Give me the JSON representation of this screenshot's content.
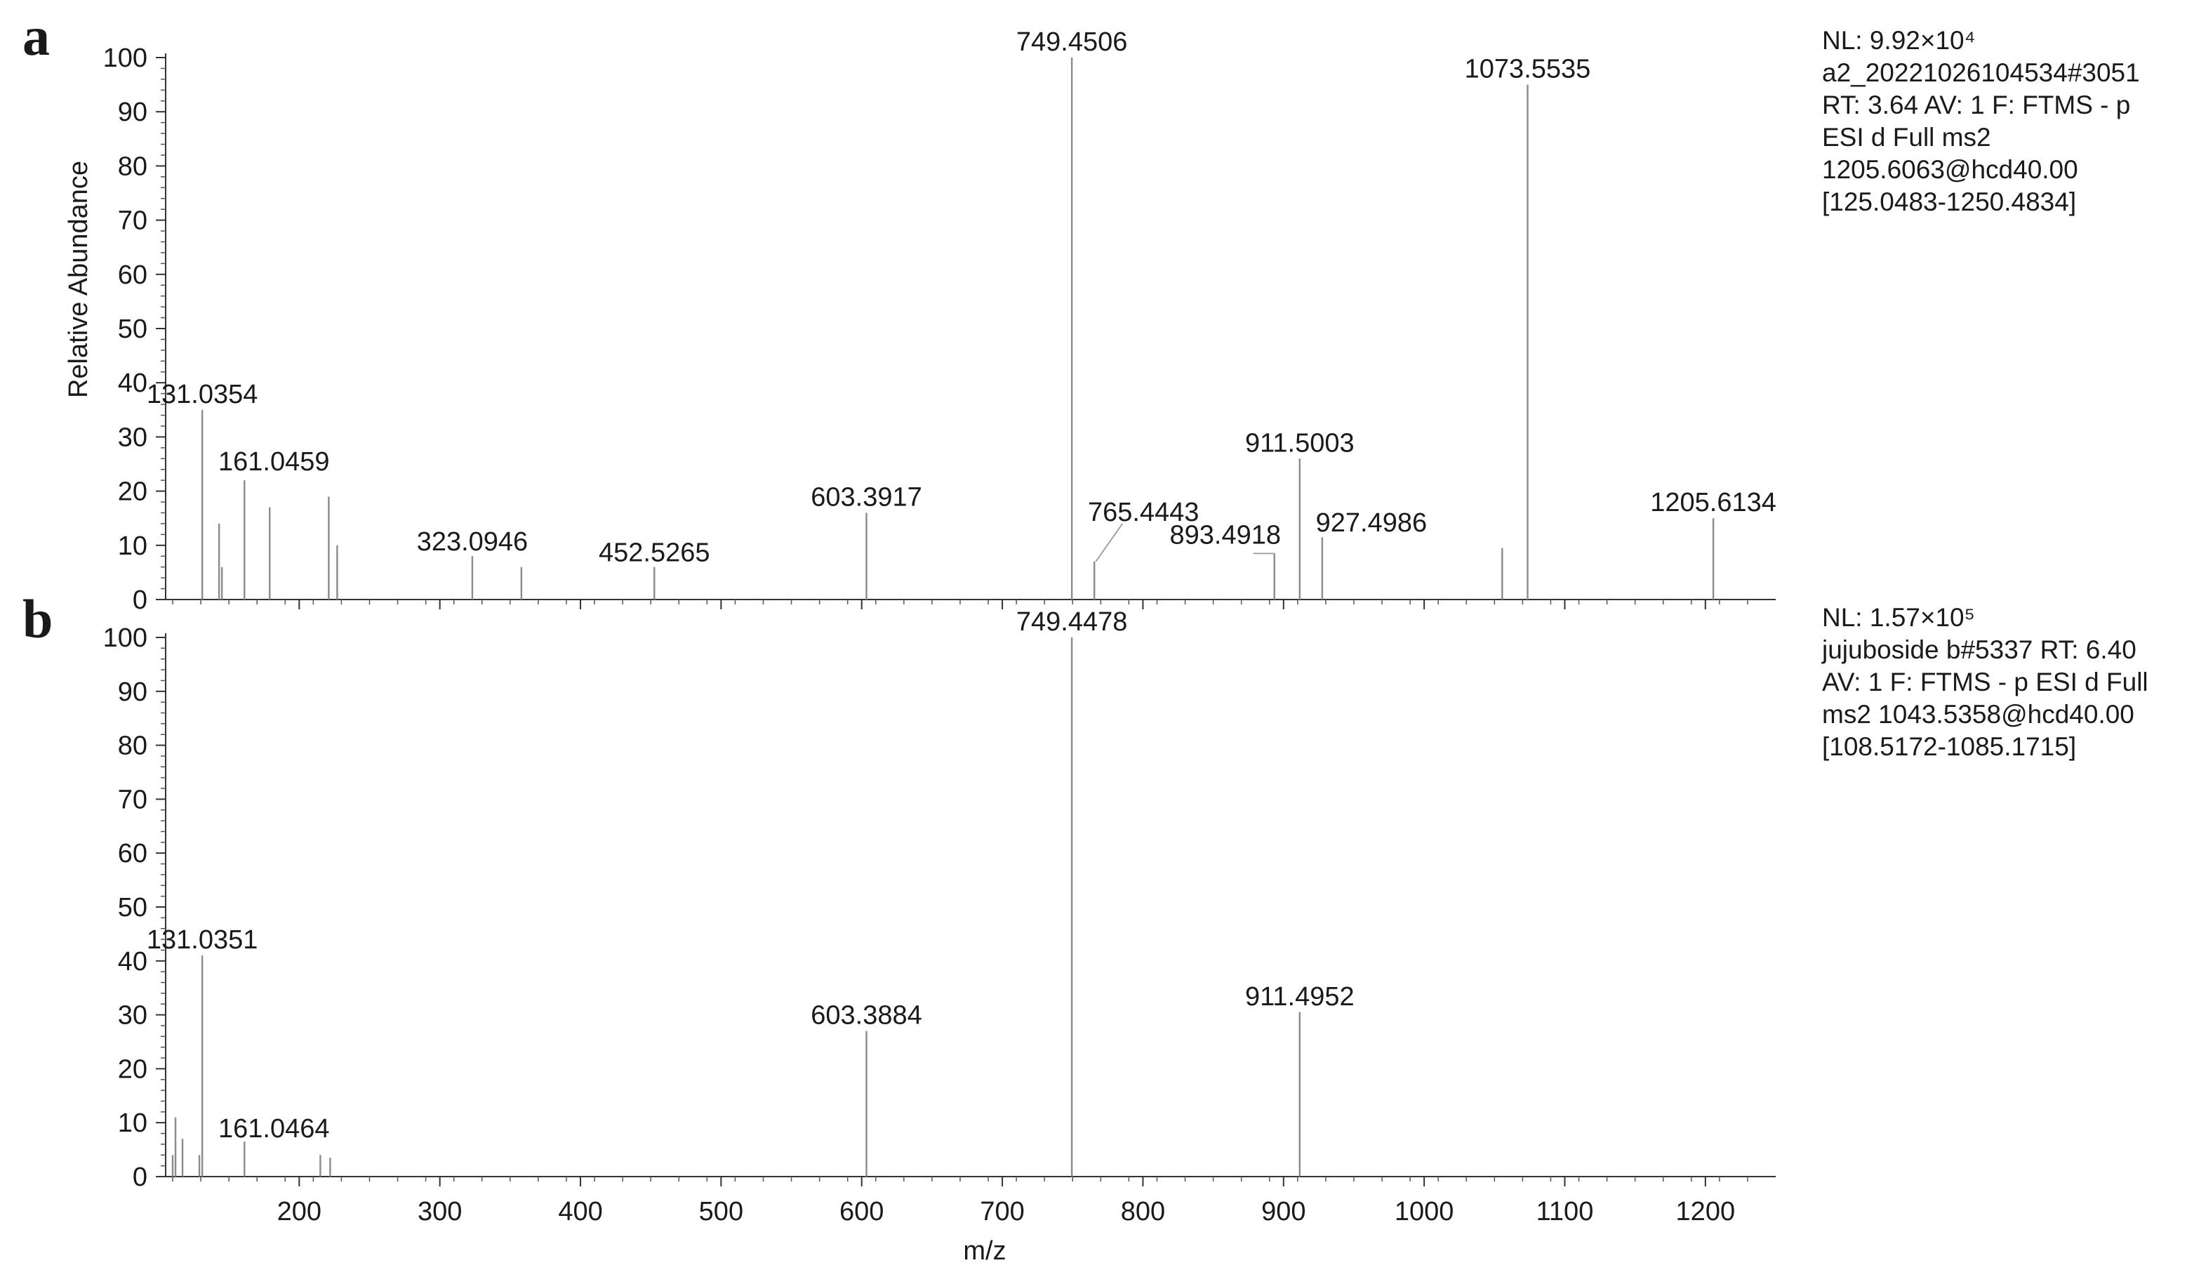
{
  "chart_data": [
    {
      "type": "bar",
      "panel_label": "a",
      "ylabel": "Relative Abundance",
      "xlabel": "",
      "ylim": [
        0,
        100
      ],
      "xlim": [
        105,
        1250
      ],
      "y_ticks": [
        "0",
        "10",
        "20",
        "30",
        "40",
        "50",
        "60",
        "70",
        "80",
        "90",
        "100"
      ],
      "info": [
        "NL: 9.92×10⁴",
        "a2_20221026104534#3051",
        "RT: 3.64  AV: 1 F: FTMS - p",
        "ESI d Full ms2",
        "1205.6063@hcd40.00",
        "[125.0483-1250.4834]"
      ],
      "peaks": [
        {
          "mz": 131.0354,
          "intensity": 35,
          "label": "131.0354"
        },
        {
          "mz": 143.0,
          "intensity": 14
        },
        {
          "mz": 145.0,
          "intensity": 6
        },
        {
          "mz": 161.0459,
          "intensity": 22,
          "label": "161.0459"
        },
        {
          "mz": 179.0,
          "intensity": 17
        },
        {
          "mz": 221.0,
          "intensity": 19
        },
        {
          "mz": 227.0,
          "intensity": 10
        },
        {
          "mz": 323.0946,
          "intensity": 8,
          "label": "323.0946"
        },
        {
          "mz": 358.0,
          "intensity": 6
        },
        {
          "mz": 452.5265,
          "intensity": 6,
          "label": "452.5265"
        },
        {
          "mz": 603.3917,
          "intensity": 16,
          "label": "603.3917"
        },
        {
          "mz": 749.4506,
          "intensity": 100,
          "label": "749.4506"
        },
        {
          "mz": 765.4443,
          "intensity": 7,
          "label": "765.4443"
        },
        {
          "mz": 893.4918,
          "intensity": 8.5,
          "label": "893.4918"
        },
        {
          "mz": 911.5003,
          "intensity": 26,
          "label": "911.5003"
        },
        {
          "mz": 927.4986,
          "intensity": 11.5,
          "label": "927.4986"
        },
        {
          "mz": 1055.5,
          "intensity": 9.5
        },
        {
          "mz": 1073.5535,
          "intensity": 95,
          "label": "1073.5535"
        },
        {
          "mz": 1205.6134,
          "intensity": 15,
          "label": "1205.6134"
        }
      ]
    },
    {
      "type": "bar",
      "panel_label": "b",
      "ylabel": "",
      "xlabel": "m/z",
      "ylim": [
        0,
        100
      ],
      "xlim": [
        105,
        1250
      ],
      "y_ticks": [
        "0",
        "10",
        "20",
        "30",
        "40",
        "50",
        "60",
        "70",
        "80",
        "90",
        "100"
      ],
      "x_ticks": [
        "200",
        "300",
        "400",
        "500",
        "600",
        "700",
        "800",
        "900",
        "1000",
        "1100",
        "1200"
      ],
      "info": [
        "NL: 1.57×10⁵",
        "jujuboside b#5337  RT: 6.40",
        "AV: 1 F: FTMS - p ESI d Full",
        "ms2 1043.5358@hcd40.00",
        "[108.5172-1085.1715]"
      ],
      "peaks": [
        {
          "mz": 110.0,
          "intensity": 4
        },
        {
          "mz": 112.0,
          "intensity": 11
        },
        {
          "mz": 117.0,
          "intensity": 7
        },
        {
          "mz": 129.0,
          "intensity": 4
        },
        {
          "mz": 131.0351,
          "intensity": 41,
          "label": "131.0351"
        },
        {
          "mz": 161.0464,
          "intensity": 6.5,
          "label": "161.0464"
        },
        {
          "mz": 215.0,
          "intensity": 4
        },
        {
          "mz": 222.0,
          "intensity": 3.5
        },
        {
          "mz": 603.3884,
          "intensity": 27,
          "label": "603.3884"
        },
        {
          "mz": 749.4478,
          "intensity": 100,
          "label": "749.4478"
        },
        {
          "mz": 911.4952,
          "intensity": 30.5,
          "label": "911.4952"
        }
      ]
    }
  ]
}
